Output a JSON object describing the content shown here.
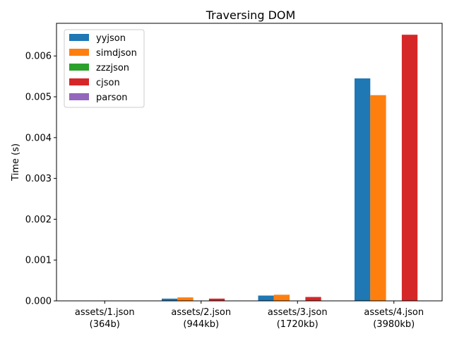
{
  "chart_data": {
    "type": "bar",
    "title": "Traversing DOM",
    "xlabel": "",
    "ylabel": "Time (s)",
    "ylim": [
      0,
      0.0068
    ],
    "yticks": [
      "0.000",
      "0.001",
      "0.002",
      "0.003",
      "0.004",
      "0.005",
      "0.006"
    ],
    "categories": [
      [
        "assets/1.json",
        "(364b)"
      ],
      [
        "assets/2.json",
        "(944kb)"
      ],
      [
        "assets/3.json",
        "(1720kb)"
      ],
      [
        "assets/4.json",
        "(3980kb)"
      ]
    ],
    "series": [
      {
        "name": "yyjson",
        "color": "#1f77b4",
        "values": [
          4e-07,
          5.5e-05,
          0.00013,
          0.00545
        ]
      },
      {
        "name": "simdjson",
        "color": "#ff7f0e",
        "values": [
          5e-07,
          8.5e-05,
          0.00015,
          0.00504
        ]
      },
      {
        "name": "zzzjson",
        "color": "#2ca02c",
        "values": [
          0,
          0,
          0,
          0
        ]
      },
      {
        "name": "cjson",
        "color": "#d62728",
        "values": [
          6e-07,
          5.5e-05,
          9.5e-05,
          0.00652
        ]
      },
      {
        "name": "parson",
        "color": "#9467bd",
        "values": [
          0,
          0,
          0,
          0
        ]
      }
    ],
    "legend_position": "top-left",
    "grid": false
  }
}
